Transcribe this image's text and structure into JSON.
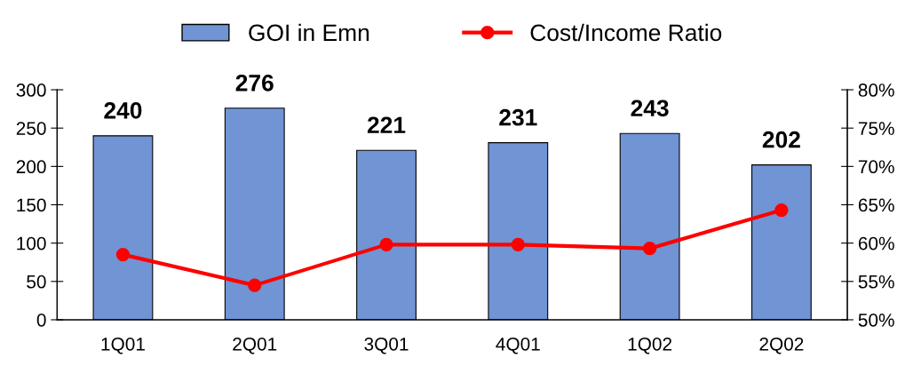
{
  "chart_data": {
    "type": "bar",
    "categories": [
      "1Q01",
      "2Q01",
      "3Q01",
      "4Q01",
      "1Q02",
      "2Q02"
    ],
    "series": [
      {
        "name": "GOI in Emn",
        "color": "#7094d4",
        "values": [
          240,
          276,
          221,
          231,
          243,
          202
        ],
        "data_labels": true
      },
      {
        "name": "Cost/Income Ratio",
        "type": "line",
        "axis": "y2",
        "color": "#ff0000",
        "marker": "circle",
        "values": [
          58.5,
          54.5,
          59.8,
          59.8,
          59.3,
          64.3
        ]
      }
    ],
    "ylim": [
      0,
      300
    ],
    "yticks": [
      0,
      50,
      100,
      150,
      200,
      250,
      300
    ],
    "y2lim": [
      50,
      80
    ],
    "y2ticks": [
      {
        "value": 50,
        "label": "50%"
      },
      {
        "value": 55,
        "label": "55%"
      },
      {
        "value": 60,
        "label": "60%"
      },
      {
        "value": 65,
        "label": "65%"
      },
      {
        "value": 70,
        "label": "70%"
      },
      {
        "value": 75,
        "label": "75%"
      },
      {
        "value": 80,
        "label": "80%"
      }
    ],
    "legend": "top",
    "grid": false
  }
}
